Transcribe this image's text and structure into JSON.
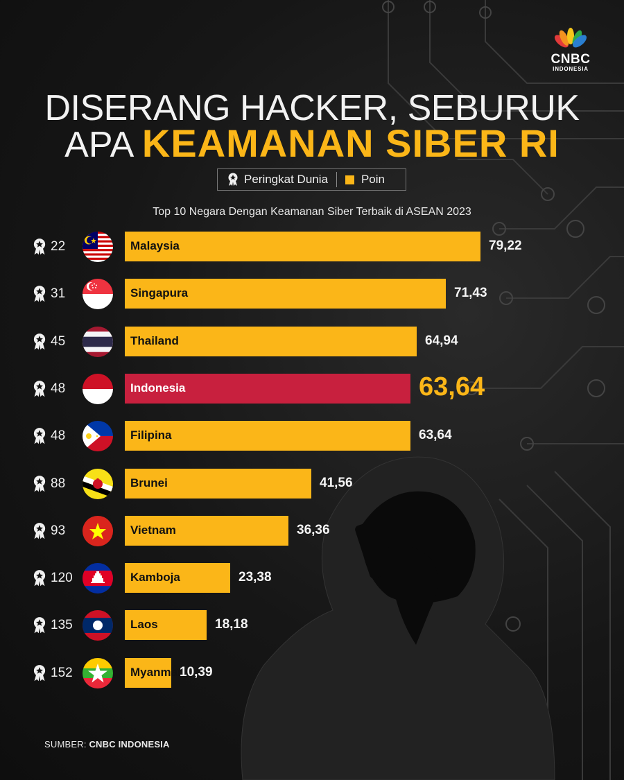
{
  "brand": {
    "name": "CNBC",
    "sub": "INDONESIA"
  },
  "title_line1": "DISERANG HACKER, SEBURUK",
  "title_line2_prefix": "APA",
  "title_line2_highlight": "KEAMANAN SIBER RI",
  "legend": {
    "rank_label": "Peringkat Dunia",
    "points_label": "Poin"
  },
  "subtitle": "Top 10 Negara Dengan Keamanan Siber Terbaik di ASEAN 2023",
  "source_prefix": "SUMBER:",
  "source_name": "CNBC INDONESIA",
  "colors": {
    "bar": "#fbb618",
    "highlight_bar": "#c8203e",
    "background": "#141414"
  },
  "chart_data": {
    "type": "bar",
    "orientation": "horizontal",
    "title": "Top 10 Negara Dengan Keamanan Siber Terbaik di ASEAN 2023",
    "categories": [
      "Malaysia",
      "Singapura",
      "Thailand",
      "Indonesia",
      "Filipina",
      "Brunei",
      "Vietnam",
      "Kamboja",
      "Laos",
      "Myanmar"
    ],
    "values": [
      79.22,
      71.43,
      64.94,
      63.64,
      63.64,
      41.56,
      36.36,
      23.38,
      18.18,
      10.39
    ],
    "value_labels": [
      "79,22",
      "71,43",
      "64,94",
      "63,64",
      "63,64",
      "41,56",
      "36,36",
      "23,38",
      "18,18",
      "10,39"
    ],
    "world_ranks": [
      "22",
      "31",
      "45",
      "48",
      "48",
      "88",
      "93",
      "120",
      "135",
      "152"
    ],
    "highlight": "Indonesia",
    "xlim": [
      0,
      100
    ]
  }
}
